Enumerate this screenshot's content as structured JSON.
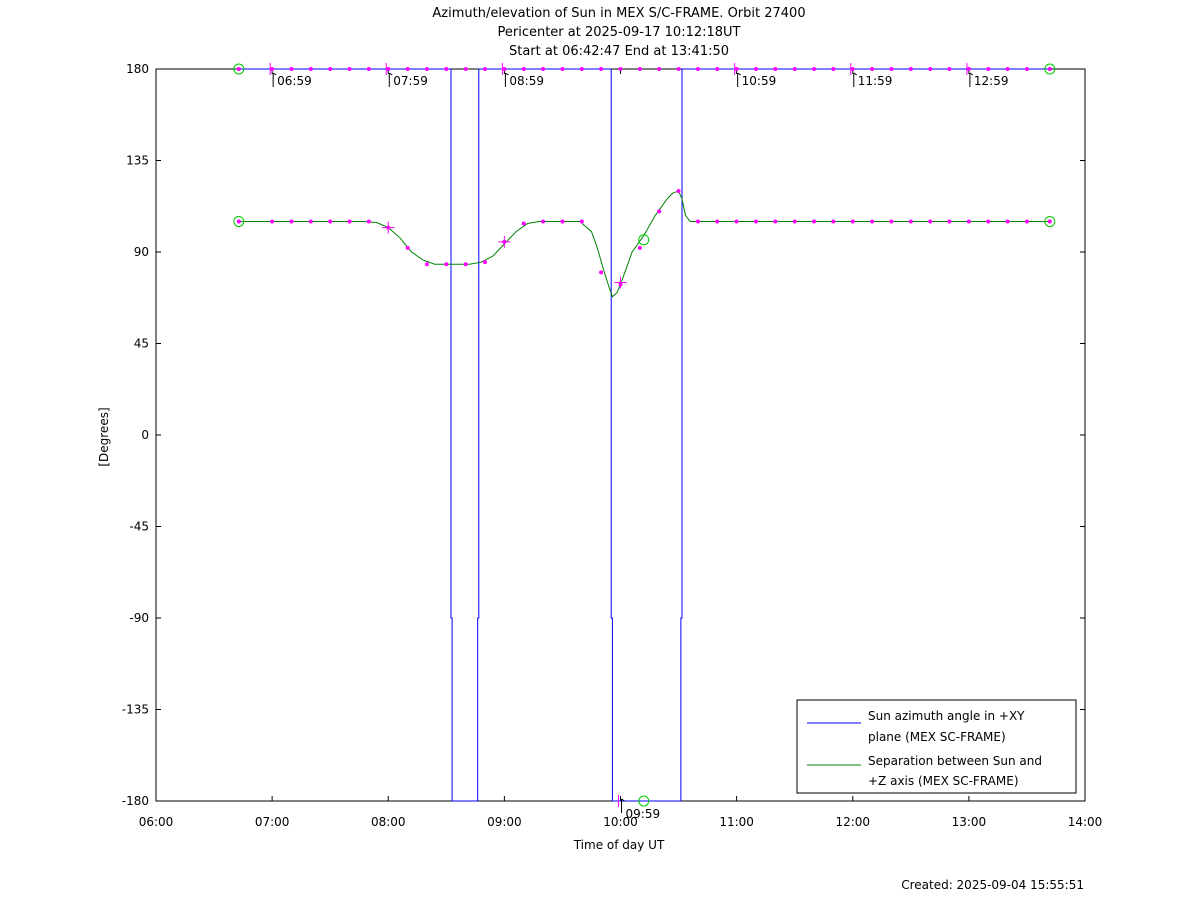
{
  "chart_data": {
    "type": "line",
    "title": [
      "Azimuth/elevation of Sun in MEX S/C-FRAME.  Orbit 27400",
      "Pericenter at 2025-09-17 10:12:18UT",
      "Start at 06:42:47 End at 13:41:50"
    ],
    "xlabel": "Time of day UT",
    "ylabel": "[Degrees]",
    "footer": "Created: 2025-09-04 15:55:51",
    "xlim": [
      6.0,
      14.0
    ],
    "ylim": [
      -180,
      180
    ],
    "xtick_values": [
      6,
      7,
      8,
      9,
      10,
      11,
      12,
      13,
      14
    ],
    "xtick_labels": [
      "06:00",
      "07:00",
      "08:00",
      "09:00",
      "10:00",
      "11:00",
      "12:00",
      "13:00",
      "14:00"
    ],
    "ytick_values": [
      180,
      135,
      90,
      45,
      0,
      -45,
      -90,
      -135,
      -180
    ],
    "ytick_labels": [
      "180",
      "135",
      "90",
      "45",
      "0",
      "-45",
      "-90",
      "-135",
      "-180"
    ],
    "series": [
      {
        "name": "Sun azimuth angle in +XY plane (MEX SC-FRAME)",
        "legend_lines": [
          "Sun azimuth angle in +XY",
          "plane (MEX SC-FRAME)"
        ],
        "color": "#0000ff",
        "x": [
          6.713,
          8.54,
          8.54,
          8.55,
          8.55,
          8.77,
          8.77,
          8.78,
          8.78,
          9.92,
          9.92,
          9.93,
          9.93,
          10.52,
          10.52,
          10.53,
          10.53,
          13.697
        ],
        "y": [
          180,
          180,
          -90,
          -90,
          -180,
          -180,
          -90,
          -90,
          180,
          180,
          -90,
          -90,
          -180,
          -180,
          -90,
          -90,
          180,
          180
        ]
      },
      {
        "name": "Separation between Sun and +Z axis (MEX SC-FRAME)",
        "legend_lines": [
          "Separation between Sun and",
          "+Z axis (MEX SC-FRAME)"
        ],
        "color": "#008000",
        "x": [
          6.713,
          7.0,
          7.5,
          7.8,
          7.9,
          8.0,
          8.1,
          8.2,
          8.3,
          8.4,
          8.5,
          8.6,
          8.7,
          8.8,
          8.9,
          9.0,
          9.1,
          9.2,
          9.3,
          9.5,
          9.65,
          9.75,
          9.8,
          9.85,
          9.9,
          9.93,
          9.97,
          10.0,
          10.05,
          10.1,
          10.2,
          10.3,
          10.4,
          10.45,
          10.5,
          10.53,
          10.56,
          10.6,
          11.0,
          12.0,
          13.0,
          13.697
        ],
        "y": [
          105,
          105,
          105,
          105,
          104.5,
          102,
          97,
          90,
          86,
          84,
          84,
          84,
          84,
          85,
          88,
          94,
          100,
          104,
          105,
          105,
          105,
          100,
          92,
          82,
          73,
          68,
          70,
          74,
          82,
          90,
          98,
          108,
          116,
          119,
          120,
          116,
          108,
          105,
          105,
          105,
          105,
          105
        ]
      }
    ],
    "magenta_dots": [
      {
        "x": [
          6.713,
          7.0,
          7.167,
          7.333,
          7.5,
          7.667,
          7.833,
          8.0,
          8.167,
          8.333,
          8.5,
          8.667,
          8.833,
          9.0,
          9.167,
          9.333,
          9.5,
          9.667,
          9.833,
          10.0,
          10.167,
          10.333,
          10.5,
          10.667,
          10.833,
          11.0,
          11.167,
          11.333,
          11.5,
          11.667,
          11.833,
          12.0,
          12.167,
          12.333,
          12.5,
          12.667,
          12.833,
          13.0,
          13.167,
          13.333,
          13.5,
          13.697
        ],
        "y": 180
      },
      {
        "x": [
          6.713,
          7.0,
          7.167,
          7.333,
          7.5,
          7.667,
          7.833,
          8.0,
          8.167,
          8.333,
          8.5,
          8.667,
          8.833,
          9.0,
          9.167,
          9.333,
          9.5,
          9.667,
          9.833,
          10.0,
          10.167,
          10.333,
          10.5,
          10.667,
          10.833,
          11.0,
          11.167,
          11.333,
          11.5,
          11.667,
          11.833,
          12.0,
          12.167,
          12.333,
          12.5,
          12.667,
          12.833,
          13.0,
          13.167,
          13.333,
          13.5,
          13.697
        ],
        "y": [
          105,
          105,
          105,
          105,
          105,
          105,
          105,
          102,
          92,
          84,
          84,
          84,
          85,
          95,
          104,
          105,
          105,
          105,
          80,
          74,
          92,
          110,
          120,
          105,
          105,
          105,
          105,
          105,
          105,
          105,
          105,
          105,
          105,
          105,
          105,
          105,
          105,
          105,
          105,
          105,
          105,
          105
        ]
      }
    ],
    "hour_markers": {
      "x": [
        6.983,
        7.983,
        8.983,
        9.983,
        10.983,
        11.983,
        12.983
      ],
      "labels": [
        "06:59",
        "07:59",
        "08:59",
        "09:59",
        "10:59",
        "11:59",
        "12:59"
      ],
      "y": [
        180,
        180,
        180,
        -180,
        180,
        180,
        180
      ]
    },
    "green_circles": [
      {
        "x": 6.713,
        "y": 180
      },
      {
        "x": 13.697,
        "y": 180
      },
      {
        "x": 6.713,
        "y": 105
      },
      {
        "x": 13.697,
        "y": 105
      },
      {
        "x": 10.2,
        "y": 96
      },
      {
        "x": 10.2,
        "y": -180
      }
    ],
    "plus_markers": [
      {
        "x": 8.0,
        "y": 102
      },
      {
        "x": 9.0,
        "y": 95
      },
      {
        "x": 10.0,
        "y": 75
      }
    ],
    "legend_position": "bottom-right",
    "grid": false
  }
}
